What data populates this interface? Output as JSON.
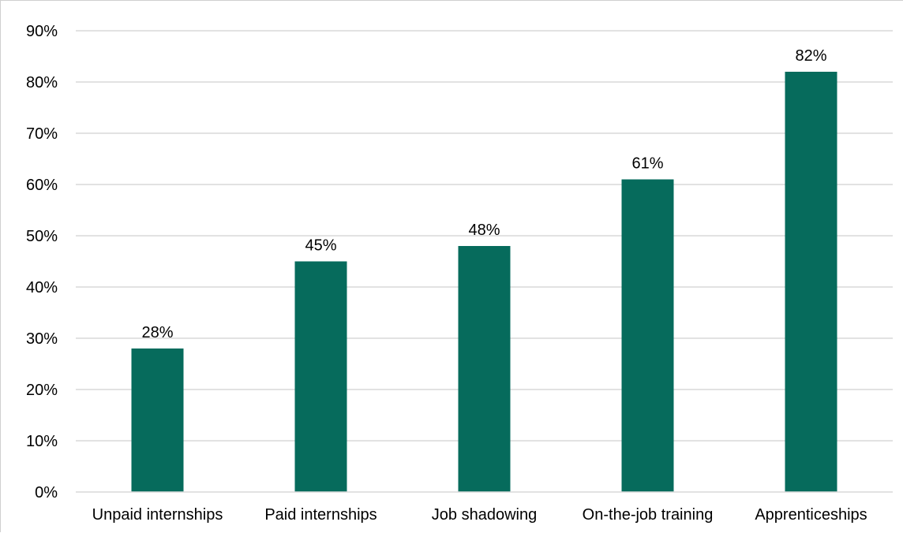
{
  "chart_data": {
    "type": "bar",
    "title": "",
    "xlabel": "",
    "ylabel": "",
    "categories": [
      "Unpaid internships",
      "Paid internships",
      "Job shadowing",
      "On-the-job training",
      "Apprenticeships"
    ],
    "values": [
      28,
      45,
      48,
      61,
      82
    ],
    "value_labels": [
      "28%",
      "45%",
      "48%",
      "61%",
      "82%"
    ],
    "ylim": [
      0,
      90
    ],
    "y_ticks": [
      0,
      10,
      20,
      30,
      40,
      50,
      60,
      70,
      80,
      90
    ],
    "y_tick_labels": [
      "0%",
      "10%",
      "20%",
      "30%",
      "40%",
      "50%",
      "60%",
      "70%",
      "80%",
      "90%"
    ],
    "grid": true,
    "legend": "none",
    "bar_color": "#066b5c",
    "grid_color": "#d9d9d9"
  }
}
